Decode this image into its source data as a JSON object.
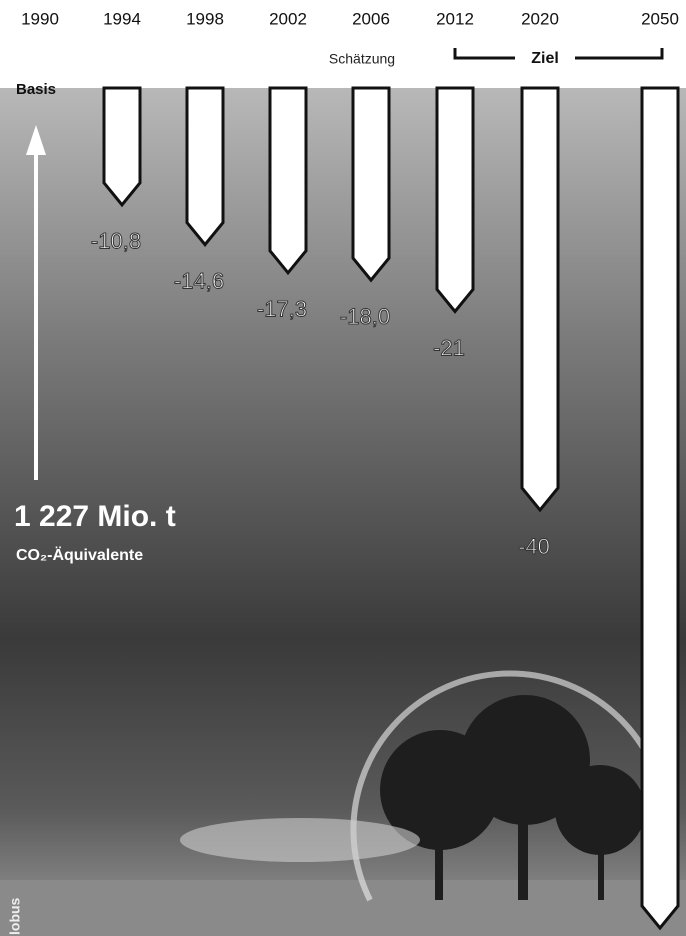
{
  "chart_data": {
    "type": "arrow-bar",
    "categories": [
      "1990",
      "1994",
      "1998",
      "2002",
      "2006",
      "2012",
      "2020",
      "2050"
    ],
    "values": [
      0,
      -10.8,
      -14.6,
      -17.3,
      -18.0,
      -21,
      -40,
      -80
    ],
    "value_labels": [
      null,
      "-10,8",
      "-14,6",
      "-17,3",
      "-18,0",
      "-21",
      "-40",
      null
    ],
    "ylim": [
      0,
      -80
    ],
    "base_label": "Basis",
    "estimate_label": "Schätzung",
    "target_label": "Ziel",
    "base_amount": "1 227 Mio. t",
    "base_unit": "CO₂-Äquivalente",
    "source": "lobus",
    "color": "#ffffff"
  }
}
